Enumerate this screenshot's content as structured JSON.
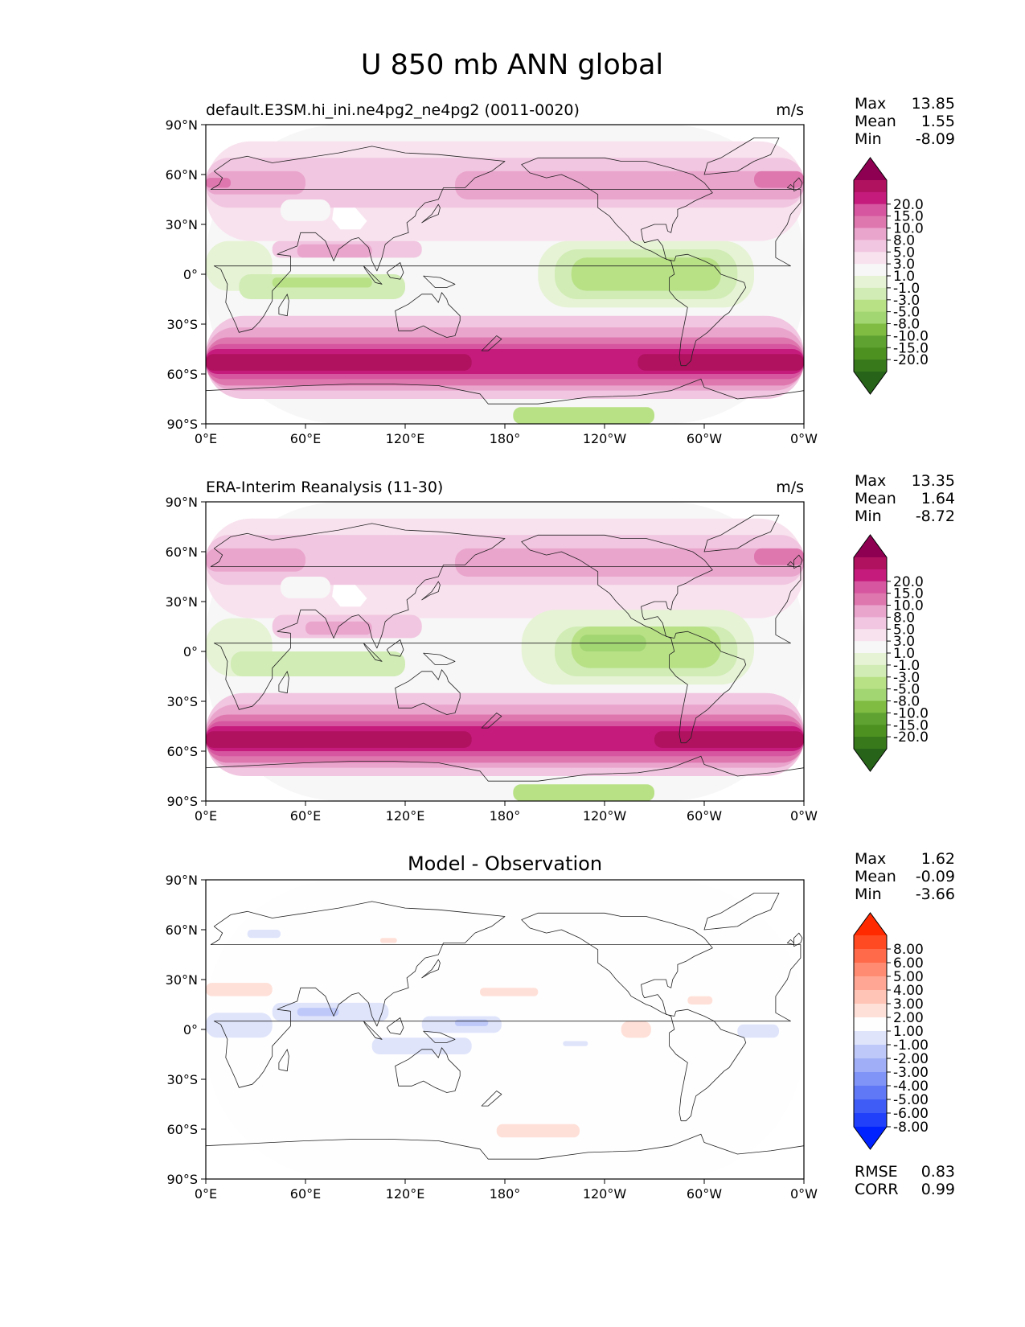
{
  "figure": {
    "title": "U 850 mb ANN global"
  },
  "axes": {
    "x_ticks": [
      "0°E",
      "60°E",
      "120°E",
      "180°",
      "120°W",
      "60°W",
      "0°W"
    ],
    "y_ticks": [
      "90°N",
      "60°N",
      "30°N",
      "0°",
      "30°S",
      "60°S",
      "90°S"
    ]
  },
  "panels": [
    {
      "id": "model",
      "title_left": "default.E3SM.hi_ini.ne4pg2_ne4pg2 (0011-0020)",
      "title_center": "",
      "units": "m/s",
      "stats": [
        {
          "label": "Max",
          "value": "13.85"
        },
        {
          "label": "Mean",
          "value": "1.55"
        },
        {
          "label": "Min",
          "value": "-8.09"
        }
      ],
      "colorbar": "field"
    },
    {
      "id": "obs",
      "title_left": "ERA-Interim Reanalysis (11-30)",
      "title_center": "",
      "units": "m/s",
      "stats": [
        {
          "label": "Max",
          "value": "13.35"
        },
        {
          "label": "Mean",
          "value": "1.64"
        },
        {
          "label": "Min",
          "value": "-8.72"
        }
      ],
      "colorbar": "field"
    },
    {
      "id": "diff",
      "title_left": "",
      "title_center": "Model - Observation",
      "units": "",
      "stats": [
        {
          "label": "Max",
          "value": "1.62"
        },
        {
          "label": "Mean",
          "value": "-0.09"
        },
        {
          "label": "Min",
          "value": "-3.66"
        }
      ],
      "extra_stats": [
        {
          "label": "RMSE",
          "value": "0.83"
        },
        {
          "label": "CORR",
          "value": "0.99"
        }
      ],
      "colorbar": "diff"
    }
  ],
  "colorbars": {
    "field": {
      "labels": [
        "20.0",
        "15.0",
        "10.0",
        "8.0",
        "5.0",
        "3.0",
        "1.0",
        "-1.0",
        "-3.0",
        "-5.0",
        "-8.0",
        "-10.0",
        "-15.0",
        "-20.0"
      ],
      "colors": [
        "#8e0152",
        "#b0125f",
        "#c51b7d",
        "#d6569f",
        "#de77ae",
        "#eaa5cd",
        "#f1c6e0",
        "#f8e2ee",
        "#f7f7f7",
        "#e6f3d5",
        "#d1ecb5",
        "#b8e186",
        "#a2d672",
        "#7fbc41",
        "#5fa232",
        "#4d9221",
        "#37791b",
        "#276419"
      ]
    },
    "diff": {
      "labels": [
        "8.00",
        "6.00",
        "5.00",
        "4.00",
        "3.00",
        "2.00",
        "1.00",
        "-1.00",
        "-2.00",
        "-3.00",
        "-4.00",
        "-5.00",
        "-6.00",
        "-8.00"
      ],
      "colors": [
        "#ff2a00",
        "#ff4a22",
        "#ff6a4a",
        "#ff8b72",
        "#ffa794",
        "#ffc4b6",
        "#ffe0d8",
        "#fefefe",
        "#dfe4fb",
        "#bfc9f9",
        "#a0aef7",
        "#8093f6",
        "#6078f5",
        "#405cf7",
        "#2040f9",
        "#0022ff"
      ]
    }
  },
  "chart_data": [
    {
      "type": "heatmap",
      "title": "default.E3SM.hi_ini.ne4pg2_ne4pg2 (0011-0020)",
      "units": "m/s",
      "xlim": [
        0,
        360
      ],
      "ylim": [
        -90,
        90
      ],
      "levels": [
        -20,
        -15,
        -10,
        -8,
        -5,
        -3,
        -1,
        1,
        3,
        5,
        8,
        10,
        15,
        20
      ],
      "features": [
        {
          "lat_range": [
            -60,
            -35
          ],
          "lon_range": [
            0,
            360
          ],
          "value": 12
        },
        {
          "lat_range": [
            35,
            65
          ],
          "lon_range": [
            0,
            360
          ],
          "value": 6
        },
        {
          "lat_range": [
            -20,
            10
          ],
          "lon_range": [
            200,
            300
          ],
          "value": -6
        },
        {
          "lat_range": [
            -10,
            0
          ],
          "lon_range": [
            40,
            100
          ],
          "value": -5
        },
        {
          "lat_range": [
            10,
            20
          ],
          "lon_range": [
            60,
            100
          ],
          "value": 6
        }
      ],
      "stats": {
        "max": 13.85,
        "mean": 1.55,
        "min": -8.09
      }
    },
    {
      "type": "heatmap",
      "title": "ERA-Interim Reanalysis (11-30)",
      "units": "m/s",
      "xlim": [
        0,
        360
      ],
      "ylim": [
        -90,
        90
      ],
      "levels": [
        -20,
        -15,
        -10,
        -8,
        -5,
        -3,
        -1,
        1,
        3,
        5,
        8,
        10,
        15,
        20
      ],
      "features": [
        {
          "lat_range": [
            -60,
            -35
          ],
          "lon_range": [
            0,
            360
          ],
          "value": 12
        },
        {
          "lat_range": [
            35,
            65
          ],
          "lon_range": [
            0,
            360
          ],
          "value": 6
        },
        {
          "lat_range": [
            -20,
            15
          ],
          "lon_range": [
            190,
            300
          ],
          "value": -7
        },
        {
          "lat_range": [
            10,
            20
          ],
          "lon_range": [
            60,
            100
          ],
          "value": 6
        }
      ],
      "stats": {
        "max": 13.35,
        "mean": 1.64,
        "min": -8.72
      }
    },
    {
      "type": "heatmap",
      "title": "Model - Observation",
      "xlim": [
        0,
        360
      ],
      "ylim": [
        -90,
        90
      ],
      "levels": [
        -8,
        -6,
        -5,
        -4,
        -3,
        -2,
        -1,
        1,
        2,
        3,
        4,
        5,
        6,
        8
      ],
      "features": [
        {
          "lat_range": [
            5,
            15
          ],
          "lon_range": [
            40,
            100
          ],
          "value": -2.5
        },
        {
          "lat_range": [
            0,
            10
          ],
          "lon_range": [
            140,
            175
          ],
          "value": -2
        },
        {
          "lat_range": [
            -15,
            -5
          ],
          "lon_range": [
            100,
            160
          ],
          "value": -1.5
        },
        {
          "lat_range": [
            20,
            30
          ],
          "lon_range": [
            0,
            40
          ],
          "value": 1.5
        },
        {
          "lat_range": [
            -5,
            5
          ],
          "lon_range": [
            250,
            270
          ],
          "value": 1.5
        },
        {
          "lat_range": [
            -65,
            -55
          ],
          "lon_range": [
            175,
            225
          ],
          "value": 1.5
        }
      ],
      "stats": {
        "max": 1.62,
        "mean": -0.09,
        "min": -3.66,
        "rmse": 0.83,
        "corr": 0.99
      }
    }
  ]
}
